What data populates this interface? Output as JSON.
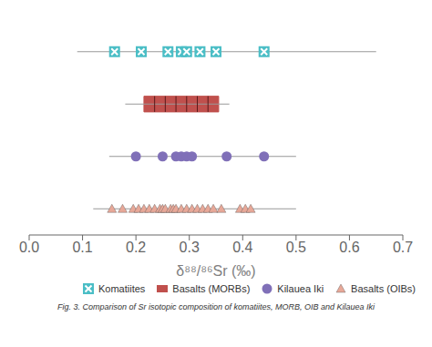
{
  "chart_data": {
    "type": "scatter",
    "xlabel": "δ⁸⁸/⁸⁶Sr (‰)",
    "annotations": [
      "Fig. 3. Comparison of Sr isotopic composition of komatiites, MORB, OIB and Kilauea Iki"
    ],
    "xlim": [
      0.0,
      0.7
    ],
    "xticks": [
      {
        "value": 0.0,
        "label": "0.0"
      },
      0.1,
      0.2,
      0.3,
      0.4,
      0.5,
      0.6,
      0.7
    ],
    "grid": false,
    "legend": "lower right",
    "series": [
      {
        "name": "Komatiites",
        "type": "scatter",
        "marker": "square-x",
        "color": "#4bbec6",
        "values": [
          0.16,
          0.21,
          0.26,
          0.285,
          0.295,
          0.32,
          0.35,
          0.44
        ],
        "range": [
          0.09,
          0.65
        ]
      },
      {
        "name": "Basalts (MORBs)",
        "type": "box",
        "color": "#c0504d",
        "box": [
          0.215,
          0.355
        ],
        "whiskers": [
          0.18,
          0.375
        ],
        "values": [
          0.235,
          0.255,
          0.275,
          0.295,
          0.315,
          0.335
        ]
      },
      {
        "name": "Kilauea Iki",
        "type": "scatter",
        "marker": "circle",
        "color": "#8070b8",
        "values": [
          0.2,
          0.25,
          0.275,
          0.285,
          0.295,
          0.305,
          0.37,
          0.44
        ],
        "range": [
          0.15,
          0.5
        ]
      },
      {
        "name": "Basalts (OIBs)",
        "type": "scatter",
        "marker": "triangle",
        "color": "#e8a898",
        "values": [
          0.155,
          0.175,
          0.195,
          0.205,
          0.215,
          0.225,
          0.235,
          0.245,
          0.25,
          0.255,
          0.265,
          0.27,
          0.275,
          0.285,
          0.295,
          0.305,
          0.315,
          0.325,
          0.335,
          0.345,
          0.36,
          0.395,
          0.405,
          0.415
        ],
        "range": [
          0.12,
          0.5
        ]
      }
    ]
  }
}
